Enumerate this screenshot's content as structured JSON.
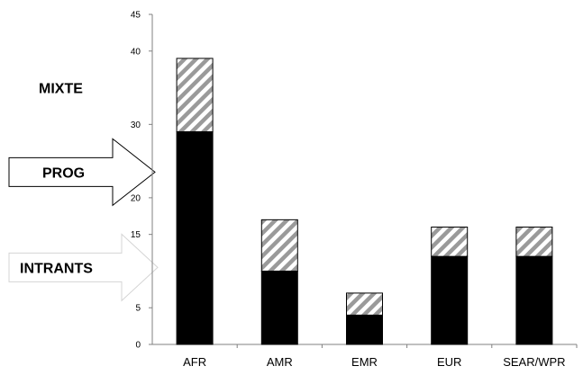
{
  "chart_data": {
    "type": "bar",
    "stacked": true,
    "categories": [
      "AFR",
      "AMR",
      "EMR",
      "EUR",
      "SEAR/WPR"
    ],
    "series": [
      {
        "values": [
          29,
          10,
          4,
          12,
          12
        ],
        "color": "#000000",
        "pattern": "solid"
      },
      {
        "values": [
          10,
          7,
          3,
          4,
          4
        ],
        "color": "#9a9a9a",
        "pattern": "diagonal-stripes"
      }
    ],
    "ylim": [
      0,
      45
    ],
    "yticks": [
      "0",
      "5",
      "15",
      "20",
      "30",
      "40",
      "45"
    ],
    "ytick_values": [
      0,
      5,
      15,
      20,
      30,
      40,
      45
    ],
    "grid": false,
    "annotations": [
      {
        "label": "MIXTE",
        "style": "plain",
        "y": 35
      },
      {
        "label": "PROG",
        "style": "arrow-outline",
        "y": 23.5
      },
      {
        "label": "INTRANTS",
        "style": "arrow-faint",
        "y": 10.5
      }
    ]
  }
}
